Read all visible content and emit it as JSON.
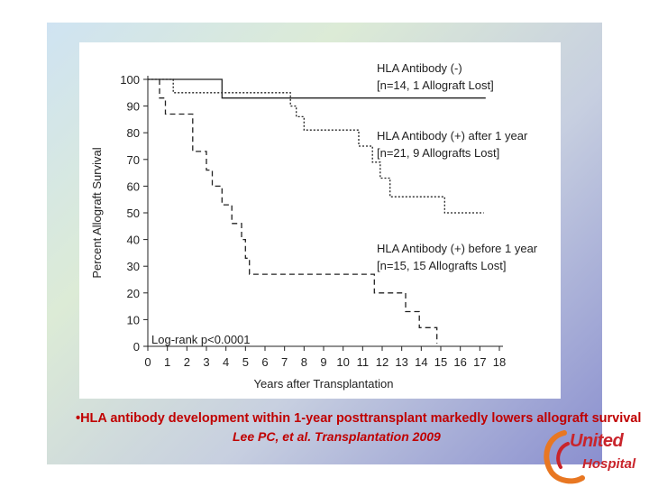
{
  "chart_data": {
    "type": "line",
    "xlabel": "Years after Transplantation",
    "ylabel": "Percent Allograft Survival",
    "xlim": [
      0,
      18
    ],
    "ylim": [
      0,
      100
    ],
    "xticks": [
      "0",
      "1",
      "2",
      "3",
      "4",
      "5",
      "6",
      "7",
      "8",
      "9",
      "10",
      "11",
      "12",
      "13",
      "14",
      "15",
      "16",
      "17",
      "18"
    ],
    "yticks": [
      "0",
      "10",
      "20",
      "30",
      "40",
      "50",
      "60",
      "70",
      "80",
      "90",
      "100"
    ],
    "annotation": "Log-rank p<0.0001",
    "series": [
      {
        "name": "HLA Antibody (-)",
        "subtitle": "[n=14, 1 Allograft Lost]",
        "style": "solid",
        "steps": [
          [
            0,
            100
          ],
          [
            3.8,
            100
          ],
          [
            3.8,
            93
          ],
          [
            17.3,
            93
          ]
        ]
      },
      {
        "name": "HLA Antibody (+) after 1 year",
        "subtitle": "[n=21, 9 Allografts Lost]",
        "style": "dotted",
        "steps": [
          [
            0,
            100
          ],
          [
            1.3,
            100
          ],
          [
            1.3,
            95
          ],
          [
            7.3,
            95
          ],
          [
            7.3,
            90
          ],
          [
            7.6,
            90
          ],
          [
            7.6,
            86
          ],
          [
            8,
            86
          ],
          [
            8,
            81
          ],
          [
            10.8,
            81
          ],
          [
            10.8,
            75
          ],
          [
            11.5,
            75
          ],
          [
            11.5,
            69
          ],
          [
            11.9,
            69
          ],
          [
            11.9,
            63
          ],
          [
            12.4,
            63
          ],
          [
            12.4,
            56
          ],
          [
            15.2,
            56
          ],
          [
            15.2,
            50
          ],
          [
            17.2,
            50
          ]
        ]
      },
      {
        "name": "HLA Antibody (+) before 1 year",
        "subtitle": "[n=15, 15 Allografts Lost]",
        "style": "dashed",
        "steps": [
          [
            0.6,
            100
          ],
          [
            0.6,
            93
          ],
          [
            0.9,
            93
          ],
          [
            0.9,
            87
          ],
          [
            2.3,
            87
          ],
          [
            2.3,
            73
          ],
          [
            3,
            73
          ],
          [
            3,
            66
          ],
          [
            3.3,
            66
          ],
          [
            3.3,
            60
          ],
          [
            3.8,
            60
          ],
          [
            3.8,
            53
          ],
          [
            4.3,
            53
          ],
          [
            4.3,
            46
          ],
          [
            4.8,
            46
          ],
          [
            4.8,
            40
          ],
          [
            5,
            40
          ],
          [
            5,
            33
          ],
          [
            5.2,
            33
          ],
          [
            5.2,
            27
          ],
          [
            11.6,
            27
          ],
          [
            11.6,
            20
          ],
          [
            13.2,
            20
          ],
          [
            13.2,
            13
          ],
          [
            13.9,
            13
          ],
          [
            13.9,
            7
          ],
          [
            14.8,
            7
          ],
          [
            14.8,
            1
          ]
        ]
      }
    ]
  },
  "slide": {
    "bullet": "•HLA antibody development within 1-year posttransplant markedly lowers allograft survival",
    "citation": "Lee PC, et al. Transplantation 2009",
    "logo_line1": "United",
    "logo_line2": "Hospital"
  }
}
